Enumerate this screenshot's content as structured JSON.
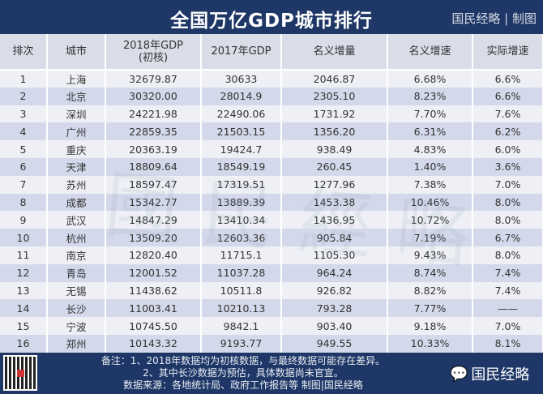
{
  "title": "全国万亿GDP城市排行",
  "brand": "国民经略 | 制图",
  "watermark": "国民经略",
  "columns": [
    "排次",
    "城市",
    "2018年GDP\n(初核)",
    "2017年GDP",
    "名义增量",
    "名义增速",
    "实际增速"
  ],
  "rows": [
    [
      "1",
      "上海",
      "32679.87",
      "30633",
      "2046.87",
      "6.68%",
      "6.6%"
    ],
    [
      "2",
      "北京",
      "30320.00",
      "28014.9",
      "2305.10",
      "8.23%",
      "6.6%"
    ],
    [
      "3",
      "深圳",
      "24221.98",
      "22490.06",
      "1731.92",
      "7.70%",
      "7.6%"
    ],
    [
      "4",
      "广州",
      "22859.35",
      "21503.15",
      "1356.20",
      "6.31%",
      "6.2%"
    ],
    [
      "5",
      "重庆",
      "20363.19",
      "19424.7",
      "938.49",
      "4.83%",
      "6.0%"
    ],
    [
      "6",
      "天津",
      "18809.64",
      "18549.19",
      "260.45",
      "1.40%",
      "3.6%"
    ],
    [
      "7",
      "苏州",
      "18597.47",
      "17319.51",
      "1277.96",
      "7.38%",
      "7.0%"
    ],
    [
      "8",
      "成都",
      "15342.77",
      "13889.39",
      "1453.38",
      "10.46%",
      "8.0%"
    ],
    [
      "9",
      "武汉",
      "14847.29",
      "13410.34",
      "1436.95",
      "10.72%",
      "8.0%"
    ],
    [
      "10",
      "杭州",
      "13509.20",
      "12603.36",
      "905.84",
      "7.19%",
      "6.7%"
    ],
    [
      "11",
      "南京",
      "12820.40",
      "11715.1",
      "1105.30",
      "9.43%",
      "8.0%"
    ],
    [
      "12",
      "青岛",
      "12001.52",
      "11037.28",
      "964.24",
      "8.74%",
      "7.4%"
    ],
    [
      "13",
      "无锡",
      "11438.62",
      "10511.8",
      "926.82",
      "8.82%",
      "7.4%"
    ],
    [
      "14",
      "长沙",
      "11003.41",
      "10210.13",
      "793.28",
      "7.77%",
      "——"
    ],
    [
      "15",
      "宁波",
      "10745.50",
      "9842.1",
      "903.40",
      "9.18%",
      "7.0%"
    ],
    [
      "16",
      "郑州",
      "10143.32",
      "9193.77",
      "949.55",
      "10.33%",
      "8.1%"
    ]
  ],
  "footer": {
    "note1": "备注：1、2018年数据均为初核数据，与最终数据可能存在差异。",
    "note2": "2、其中长沙数据为预估，具体数据尚未官宣。",
    "source": "数据来源：各地统计局、政府工作报告等  制图|国民经略",
    "account": "国民经略"
  },
  "colors": {
    "navy": "#1e3766",
    "row_light": "#eef0f5",
    "row_dark": "#d3d9ea"
  }
}
